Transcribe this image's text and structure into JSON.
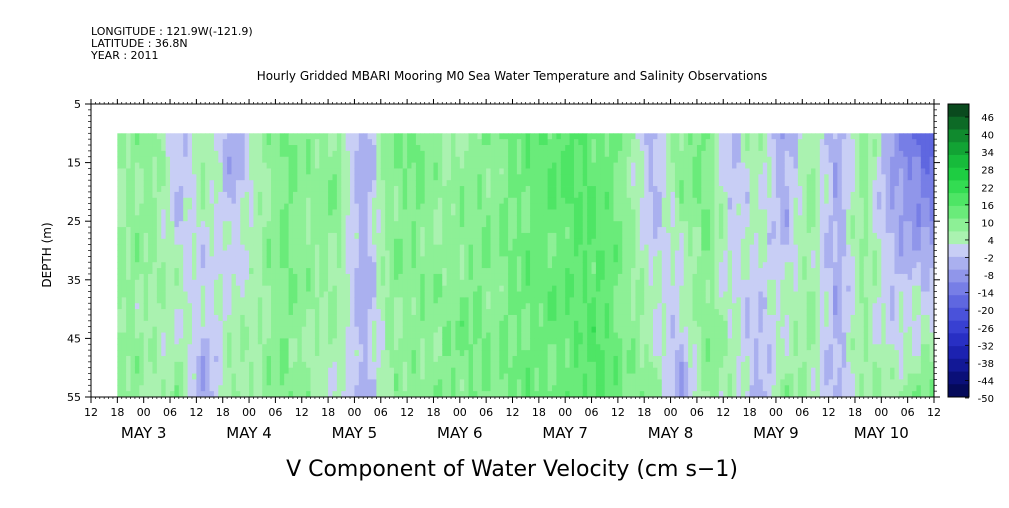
{
  "header": {
    "lines": [
      "LONGITUDE : 121.9W(-121.9)",
      "LATITUDE : 36.8N",
      "YEAR : 2011"
    ]
  },
  "chart_data": {
    "type": "heatmap",
    "title": "Hourly Gridded MBARI Mooring M0 Sea Water Temperature and Salinity Observations",
    "xlabel": "V Component of Water Velocity (cm s−1)",
    "ylabel": "DEPTH (m)",
    "x_time_range_hours": [
      0,
      192
    ],
    "x_time_origin": "MAY 2 12:00",
    "data_x_range_hours": [
      6,
      192
    ],
    "ylim": [
      5,
      55
    ],
    "data_y_range": [
      10,
      55
    ],
    "y_inverted": true,
    "y_ticks": [
      5,
      15,
      25,
      35,
      45,
      55
    ],
    "x_hour_tick_labels": [
      "12",
      "18",
      "00",
      "06",
      "12",
      "18",
      "00",
      "06",
      "12",
      "18",
      "00",
      "06",
      "12",
      "18",
      "00",
      "06",
      "12",
      "18",
      "00",
      "06",
      "12",
      "18",
      "00",
      "06",
      "12",
      "18",
      "00",
      "06",
      "12",
      "18",
      "00",
      "06",
      "12"
    ],
    "day_labels": [
      {
        "label": "MAY  3",
        "hour": 12
      },
      {
        "label": "MAY  4",
        "hour": 36
      },
      {
        "label": "MAY  5",
        "hour": 60
      },
      {
        "label": "MAY  6",
        "hour": 84
      },
      {
        "label": "MAY  7",
        "hour": 108
      },
      {
        "label": "MAY  8",
        "hour": 132
      },
      {
        "label": "MAY  9",
        "hour": 156
      },
      {
        "label": "MAY 10",
        "hour": 180
      }
    ],
    "colorbar": {
      "range": [
        -50,
        50
      ],
      "tick_labels": [
        "46",
        "40",
        "34",
        "28",
        "22",
        "16",
        "10",
        "4",
        "-2",
        "-8",
        "-14",
        "-20",
        "-26",
        "-32",
        "-38",
        "-44",
        "-50"
      ],
      "colors": [
        "#0a4a1e",
        "#0d6a26",
        "#108a2e",
        "#12a334",
        "#17bb3b",
        "#1ecd42",
        "#33dc52",
        "#4ee565",
        "#6aeb7a",
        "#8df096",
        "#aaf2b0",
        "#c8cef5",
        "#aab0ef",
        "#9096ea",
        "#777ee6",
        "#5f67e0",
        "#4a52da",
        "#3840d2",
        "#282fc4",
        "#1c22b0",
        "#121896",
        "#0a0f78",
        "#050a5a"
      ]
    },
    "column_values_top_to_bottom": [
      {
        "hour": 8,
        "top": 6,
        "bottom": 8
      },
      {
        "hour": 14,
        "top": 10,
        "bottom": 4
      },
      {
        "hour": 20,
        "top": -4,
        "bottom": 8
      },
      {
        "hour": 26,
        "top": 8,
        "bottom": -6
      },
      {
        "hour": 32,
        "top": -6,
        "bottom": 8
      },
      {
        "hour": 38,
        "top": 4,
        "bottom": 6
      },
      {
        "hour": 44,
        "top": 12,
        "bottom": 10
      },
      {
        "hour": 50,
        "top": 8,
        "bottom": 6
      },
      {
        "hour": 56,
        "top": 10,
        "bottom": 4
      },
      {
        "hour": 62,
        "top": -6,
        "bottom": -4
      },
      {
        "hour": 68,
        "top": 10,
        "bottom": 6
      },
      {
        "hour": 74,
        "top": 12,
        "bottom": 8
      },
      {
        "hour": 80,
        "top": 6,
        "bottom": 10
      },
      {
        "hour": 86,
        "top": 8,
        "bottom": 12
      },
      {
        "hour": 92,
        "top": 10,
        "bottom": 10
      },
      {
        "hour": 98,
        "top": 12,
        "bottom": 12
      },
      {
        "hour": 104,
        "top": 14,
        "bottom": 12
      },
      {
        "hour": 110,
        "top": 16,
        "bottom": 14
      },
      {
        "hour": 116,
        "top": 14,
        "bottom": 16
      },
      {
        "hour": 122,
        "top": 8,
        "bottom": 10
      },
      {
        "hour": 128,
        "top": -6,
        "bottom": 8
      },
      {
        "hour": 134,
        "top": 10,
        "bottom": -6
      },
      {
        "hour": 140,
        "top": 12,
        "bottom": 8
      },
      {
        "hour": 146,
        "top": -4,
        "bottom": 6
      },
      {
        "hour": 152,
        "top": 8,
        "bottom": -6
      },
      {
        "hour": 158,
        "top": -8,
        "bottom": 8
      },
      {
        "hour": 164,
        "top": 8,
        "bottom": 6
      },
      {
        "hour": 170,
        "top": -6,
        "bottom": -4
      },
      {
        "hour": 176,
        "top": 10,
        "bottom": 6
      },
      {
        "hour": 182,
        "top": -8,
        "bottom": 4
      },
      {
        "hour": 188,
        "top": -16,
        "bottom": 10
      },
      {
        "hour": 192,
        "top": -20,
        "bottom": 12
      }
    ],
    "legend": "right"
  }
}
